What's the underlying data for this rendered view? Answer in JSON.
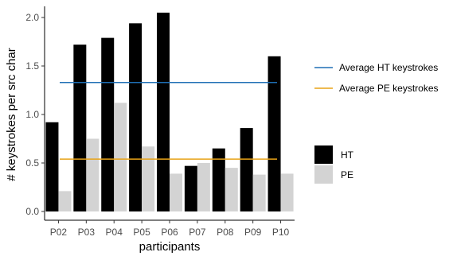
{
  "chart_data": {
    "type": "bar",
    "xlabel": "participants",
    "ylabel": "# keystrokes per src char",
    "ylim": [
      0,
      2.1
    ],
    "yticks": [
      "0.0",
      "0.5",
      "1.0",
      "1.5",
      "2.0"
    ],
    "grid": false,
    "categories": [
      "P02",
      "P03",
      "P04",
      "P05",
      "P06",
      "P07",
      "P08",
      "P09",
      "P10"
    ],
    "series": [
      {
        "name": "HT",
        "color": "#000000",
        "values": [
          0.92,
          1.72,
          1.79,
          1.94,
          2.05,
          0.47,
          0.65,
          0.86,
          1.6
        ]
      },
      {
        "name": "PE",
        "color": "#d3d3d3",
        "values": [
          0.21,
          0.75,
          1.12,
          0.67,
          0.39,
          0.5,
          0.45,
          0.38,
          0.39
        ]
      }
    ],
    "reference_lines": [
      {
        "name": "Average HT keystrokes",
        "color": "#1f6fb5",
        "value": 1.33
      },
      {
        "name": "Average PE keystrokes",
        "color": "#e8a317",
        "value": 0.54
      }
    ],
    "legend_position": "right"
  }
}
